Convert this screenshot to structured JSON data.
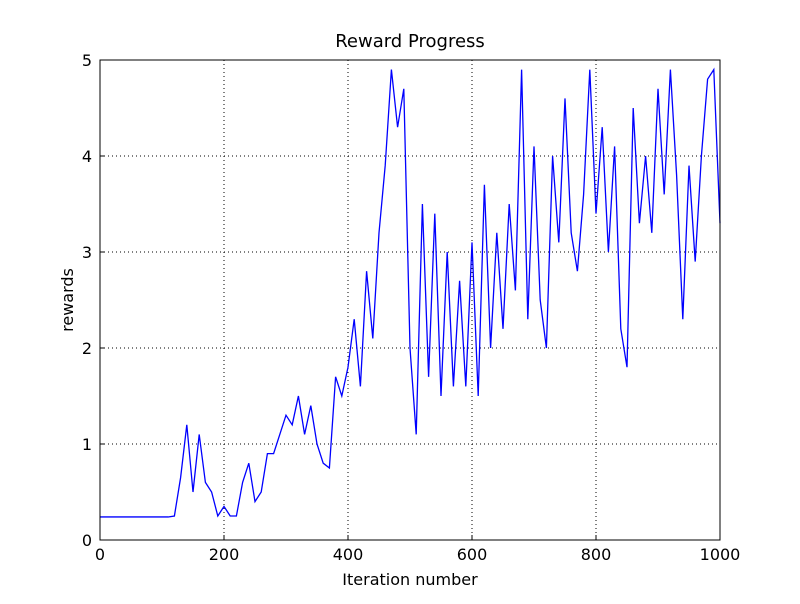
{
  "chart_data": {
    "type": "line",
    "title": "Reward Progress",
    "xlabel": "Iteration number",
    "ylabel": "rewards",
    "x": [
      0,
      10,
      20,
      30,
      40,
      50,
      60,
      70,
      80,
      90,
      100,
      110,
      120,
      130,
      140,
      150,
      160,
      170,
      180,
      190,
      200,
      210,
      220,
      230,
      240,
      250,
      260,
      270,
      280,
      290,
      300,
      310,
      320,
      330,
      340,
      350,
      360,
      370,
      380,
      390,
      400,
      410,
      420,
      430,
      440,
      450,
      460,
      470,
      480,
      490,
      500,
      510,
      520,
      530,
      540,
      550,
      560,
      570,
      580,
      590,
      600,
      610,
      620,
      630,
      640,
      650,
      660,
      670,
      680,
      690,
      700,
      710,
      720,
      730,
      740,
      750,
      760,
      770,
      780,
      790,
      800,
      810,
      820,
      830,
      840,
      850,
      860,
      870,
      880,
      890,
      900,
      910,
      920,
      930,
      940,
      950,
      960,
      970,
      980,
      990,
      1000
    ],
    "series": [
      {
        "name": "rewards",
        "color": "#0000ff",
        "values": [
          0.24,
          0.24,
          0.24,
          0.24,
          0.24,
          0.24,
          0.24,
          0.24,
          0.24,
          0.24,
          0.24,
          0.24,
          0.25,
          0.65,
          1.2,
          0.5,
          1.1,
          0.6,
          0.5,
          0.25,
          0.35,
          0.25,
          0.25,
          0.6,
          0.8,
          0.4,
          0.5,
          0.9,
          0.9,
          1.1,
          1.3,
          1.2,
          1.5,
          1.1,
          1.4,
          1.0,
          0.8,
          0.75,
          1.7,
          1.5,
          1.8,
          2.3,
          1.6,
          2.8,
          2.1,
          3.2,
          3.9,
          4.9,
          4.3,
          4.7,
          2.0,
          1.1,
          3.5,
          1.7,
          3.4,
          1.5,
          3.0,
          1.6,
          2.7,
          1.6,
          3.1,
          1.5,
          3.7,
          2.0,
          3.2,
          2.2,
          3.5,
          2.6,
          4.9,
          2.3,
          4.1,
          2.5,
          2.0,
          4.0,
          3.1,
          4.6,
          3.2,
          2.8,
          3.6,
          4.9,
          3.4,
          4.3,
          3.0,
          4.1,
          2.2,
          1.8,
          4.5,
          3.3,
          4.0,
          3.2,
          4.7,
          3.6,
          4.9,
          3.8,
          2.3,
          3.9,
          2.9,
          4.0,
          4.8,
          4.9,
          3.3
        ]
      }
    ],
    "xlim": [
      0,
      1000
    ],
    "ylim": [
      0,
      5
    ],
    "xticks": [
      0,
      200,
      400,
      600,
      800,
      1000
    ],
    "yticks": [
      0,
      1,
      2,
      3,
      4,
      5
    ],
    "grid": true
  }
}
